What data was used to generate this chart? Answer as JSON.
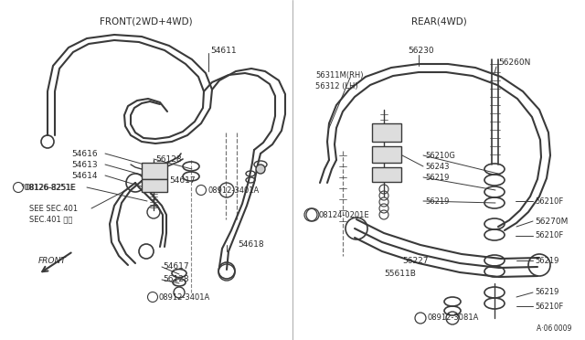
{
  "bg_color": "#ffffff",
  "line_color": "#3a3a3a",
  "text_color": "#2a2a2a",
  "fig_width": 6.4,
  "fig_height": 3.72,
  "dpi": 100,
  "front_title": "FRONT(2WD+4WD)",
  "rear_title": "REAR(4WD)",
  "catalog_num": "A·06 0009"
}
